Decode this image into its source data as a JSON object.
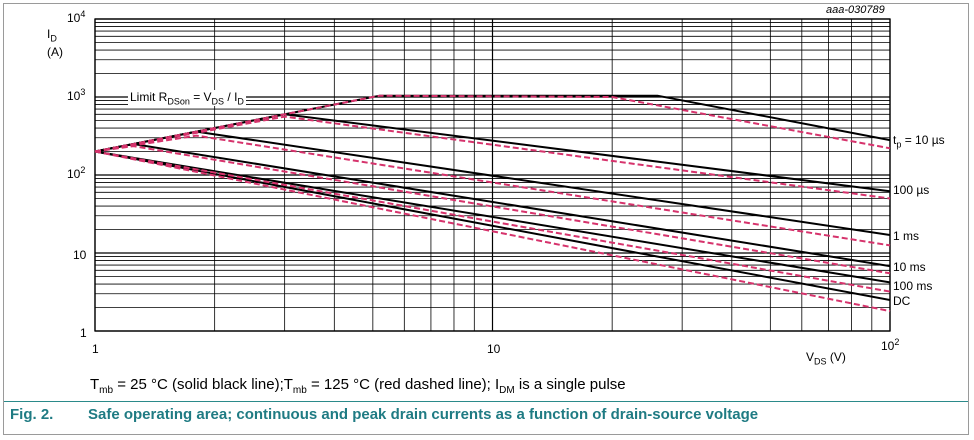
{
  "figure_id": "aaa-030789",
  "caption": {
    "number": "Fig. 2.",
    "text": "Safe operating area; continuous and peak drain currents as a function of drain-source voltage"
  },
  "note": {
    "t_sub": "mb",
    "part1": " = 25 °C (solid black line);T",
    "part2": " = 125 °C (red dashed line); I",
    "i_sub": "DM",
    "part3": " is a single pulse"
  },
  "colors": {
    "solid": "#000000",
    "dashed": "#d6336c",
    "grid": "#000000",
    "caption": "#1f7b83"
  },
  "chart_data": {
    "type": "line",
    "x_scale": "log",
    "y_scale": "log",
    "xlim": [
      1,
      100
    ],
    "ylim": [
      1,
      10000
    ],
    "grid": true,
    "xlabel": {
      "main": "V",
      "sub": "DS",
      "unit": " (V)"
    },
    "ylabel": {
      "main": "I",
      "sub": "D",
      "unit": "(A)"
    },
    "x_ticks": [
      {
        "value": 1,
        "base": "1",
        "exp": ""
      },
      {
        "value": 10,
        "base": "10",
        "exp": ""
      },
      {
        "value": 100,
        "base": "10",
        "exp": "2"
      }
    ],
    "y_ticks": [
      {
        "value": 10000,
        "base": "10",
        "exp": "4"
      },
      {
        "value": 1000,
        "base": "10",
        "exp": "3"
      },
      {
        "value": 100,
        "base": "10",
        "exp": "2"
      },
      {
        "value": 10,
        "base": "10",
        "exp": ""
      },
      {
        "value": 1,
        "base": "1",
        "exp": ""
      }
    ],
    "limit_annotation": {
      "t1": "Limit R",
      "s1": "DSon",
      "t2": " = V",
      "s2": "DS",
      "t3": " / I",
      "s3": "D"
    },
    "series_labels": {
      "tp10us": {
        "pre": "t",
        "sub": "p",
        "post": " = 10 µs"
      },
      "us100": "100 µs",
      "ms1": "1 ms",
      "ms10": "10 ms",
      "ms100": "100 ms",
      "dc": "DC"
    },
    "series": [
      {
        "key": "tp10us",
        "style": "solid",
        "points": [
          [
            1,
            200
          ],
          [
            5.2,
            1040
          ],
          [
            26,
            1040
          ],
          [
            100,
            280
          ]
        ]
      },
      {
        "key": "us100",
        "style": "solid",
        "points": [
          [
            1,
            200
          ],
          [
            3,
            600
          ],
          [
            100,
            62
          ]
        ]
      },
      {
        "key": "ms1",
        "style": "solid",
        "points": [
          [
            1,
            200
          ],
          [
            1.8,
            360
          ],
          [
            100,
            17
          ]
        ]
      },
      {
        "key": "ms10",
        "style": "solid",
        "points": [
          [
            1,
            200
          ],
          [
            1.25,
            250
          ],
          [
            100,
            6.8
          ]
        ]
      },
      {
        "key": "ms100",
        "style": "solid",
        "points": [
          [
            1,
            200
          ],
          [
            100,
            4.2
          ]
        ]
      },
      {
        "key": "dc",
        "style": "solid",
        "points": [
          [
            1,
            200
          ],
          [
            100,
            2.5
          ]
        ]
      },
      {
        "key": "tp10us",
        "style": "dashed",
        "points": [
          [
            1,
            200
          ],
          [
            5.2,
            1040
          ],
          [
            20,
            1000
          ],
          [
            100,
            220
          ]
        ]
      },
      {
        "key": "us100",
        "style": "dashed",
        "points": [
          [
            1,
            200
          ],
          [
            3,
            560
          ],
          [
            100,
            50
          ]
        ]
      },
      {
        "key": "ms1",
        "style": "dashed",
        "points": [
          [
            1,
            200
          ],
          [
            1.8,
            320
          ],
          [
            100,
            12.5
          ]
        ]
      },
      {
        "key": "ms10",
        "style": "dashed",
        "points": [
          [
            1,
            200
          ],
          [
            1.25,
            235
          ],
          [
            100,
            5.5
          ]
        ]
      },
      {
        "key": "ms100",
        "style": "dashed",
        "points": [
          [
            1,
            200
          ],
          [
            100,
            3.2
          ]
        ]
      },
      {
        "key": "dc",
        "style": "dashed",
        "points": [
          [
            1,
            200
          ],
          [
            100,
            1.8
          ]
        ]
      }
    ]
  }
}
